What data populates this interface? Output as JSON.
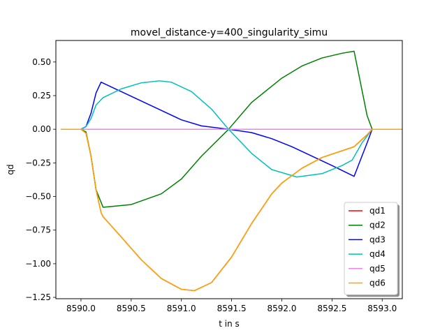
{
  "chart_data": {
    "type": "line",
    "title": "movel_distance-y=400_singularity_simu",
    "xlabel": "t in s",
    "ylabel": "qd",
    "xlim": [
      8589.75,
      8593.2
    ],
    "ylim": [
      -1.26,
      0.66
    ],
    "xticks": [
      8590.0,
      8590.5,
      8591.0,
      8591.5,
      8592.0,
      8592.5,
      8593.0
    ],
    "xtick_labels": [
      "8590.0",
      "8590.5",
      "8591.0",
      "8591.5",
      "8592.0",
      "8592.5",
      "8593.0"
    ],
    "yticks": [
      0.5,
      0.25,
      0.0,
      -0.25,
      -0.5,
      -0.75,
      -1.0,
      -1.25
    ],
    "ytick_labels": [
      "0.50",
      "0.25",
      "0.00",
      "−0.25",
      "−0.50",
      "−0.75",
      "−1.00",
      "−1.25"
    ],
    "grid": false,
    "legend_position": "bottom-right",
    "series": [
      {
        "name": "qd1",
        "color": "#ff0000",
        "x": [
          8589.8,
          8590.0,
          8590.05,
          8590.1,
          8590.15,
          8590.2,
          8590.22,
          8590.4,
          8590.6,
          8590.8,
          8591.0,
          8591.13,
          8591.3,
          8591.5,
          8591.7,
          8591.9,
          8592.0,
          8592.2,
          8592.4,
          8592.6,
          8592.72,
          8592.85,
          8592.9,
          8593.0,
          8593.2
        ],
        "y": [
          0,
          0,
          -0.03,
          -0.2,
          -0.45,
          -0.62,
          -0.65,
          -0.8,
          -0.97,
          -1.11,
          -1.19,
          -1.2,
          -1.14,
          -0.95,
          -0.7,
          -0.48,
          -0.4,
          -0.29,
          -0.21,
          -0.16,
          -0.13,
          -0.04,
          0,
          0,
          0
        ]
      },
      {
        "name": "qd2",
        "color": "#008000",
        "x": [
          8589.8,
          8590.0,
          8590.05,
          8590.1,
          8590.15,
          8590.22,
          8590.5,
          8590.8,
          8591.0,
          8591.2,
          8591.47,
          8591.7,
          8592.0,
          8592.2,
          8592.4,
          8592.6,
          8592.72,
          8592.85,
          8592.9,
          8593.0,
          8593.2
        ],
        "y": [
          0,
          0,
          -0.02,
          -0.2,
          -0.45,
          -0.58,
          -0.56,
          -0.48,
          -0.37,
          -0.2,
          0,
          0.2,
          0.38,
          0.47,
          0.53,
          0.565,
          0.58,
          0.1,
          0,
          0,
          0
        ]
      },
      {
        "name": "qd3",
        "color": "#0000ff",
        "x": [
          8589.8,
          8590.0,
          8590.05,
          8590.1,
          8590.15,
          8590.2,
          8590.4,
          8590.6,
          8590.8,
          8591.0,
          8591.2,
          8591.47,
          8591.7,
          8591.9,
          8592.1,
          8592.3,
          8592.5,
          8592.72,
          8592.85,
          8592.9,
          8593.0,
          8593.2
        ],
        "y": [
          0,
          0,
          0.02,
          0.12,
          0.27,
          0.35,
          0.28,
          0.21,
          0.14,
          0.07,
          0.025,
          0,
          -0.025,
          -0.07,
          -0.13,
          -0.2,
          -0.27,
          -0.35,
          -0.1,
          0,
          0,
          0
        ]
      },
      {
        "name": "qd4",
        "color": "#00bfbf",
        "x": [
          8589.8,
          8590.0,
          8590.05,
          8590.1,
          8590.15,
          8590.22,
          8590.4,
          8590.6,
          8590.78,
          8590.9,
          8591.1,
          8591.3,
          8591.47,
          8591.7,
          8591.9,
          8592.15,
          8592.4,
          8592.6,
          8592.7,
          8592.8,
          8592.9,
          8593.0,
          8593.2
        ],
        "y": [
          0,
          0,
          0.02,
          0.08,
          0.18,
          0.235,
          0.3,
          0.345,
          0.36,
          0.35,
          0.28,
          0.15,
          0,
          -0.18,
          -0.3,
          -0.355,
          -0.33,
          -0.27,
          -0.23,
          -0.1,
          0,
          0,
          0
        ]
      },
      {
        "name": "qd5",
        "color": "#ee82ee",
        "x": [
          8589.8,
          8593.2
        ],
        "y": [
          0,
          0
        ]
      },
      {
        "name": "qd6",
        "color": "#ffa500",
        "x": [
          8589.8,
          8590.0,
          8590.05,
          8590.1,
          8590.15,
          8590.2,
          8590.22,
          8590.4,
          8590.6,
          8590.8,
          8591.0,
          8591.13,
          8591.3,
          8591.5,
          8591.7,
          8591.9,
          8592.0,
          8592.2,
          8592.4,
          8592.6,
          8592.72,
          8592.85,
          8592.9,
          8593.0,
          8593.2
        ],
        "y": [
          0,
          0,
          -0.03,
          -0.2,
          -0.45,
          -0.62,
          -0.65,
          -0.8,
          -0.97,
          -1.11,
          -1.19,
          -1.2,
          -1.14,
          -0.95,
          -0.7,
          -0.48,
          -0.4,
          -0.29,
          -0.21,
          -0.16,
          -0.13,
          -0.04,
          0,
          0,
          0
        ]
      }
    ]
  }
}
